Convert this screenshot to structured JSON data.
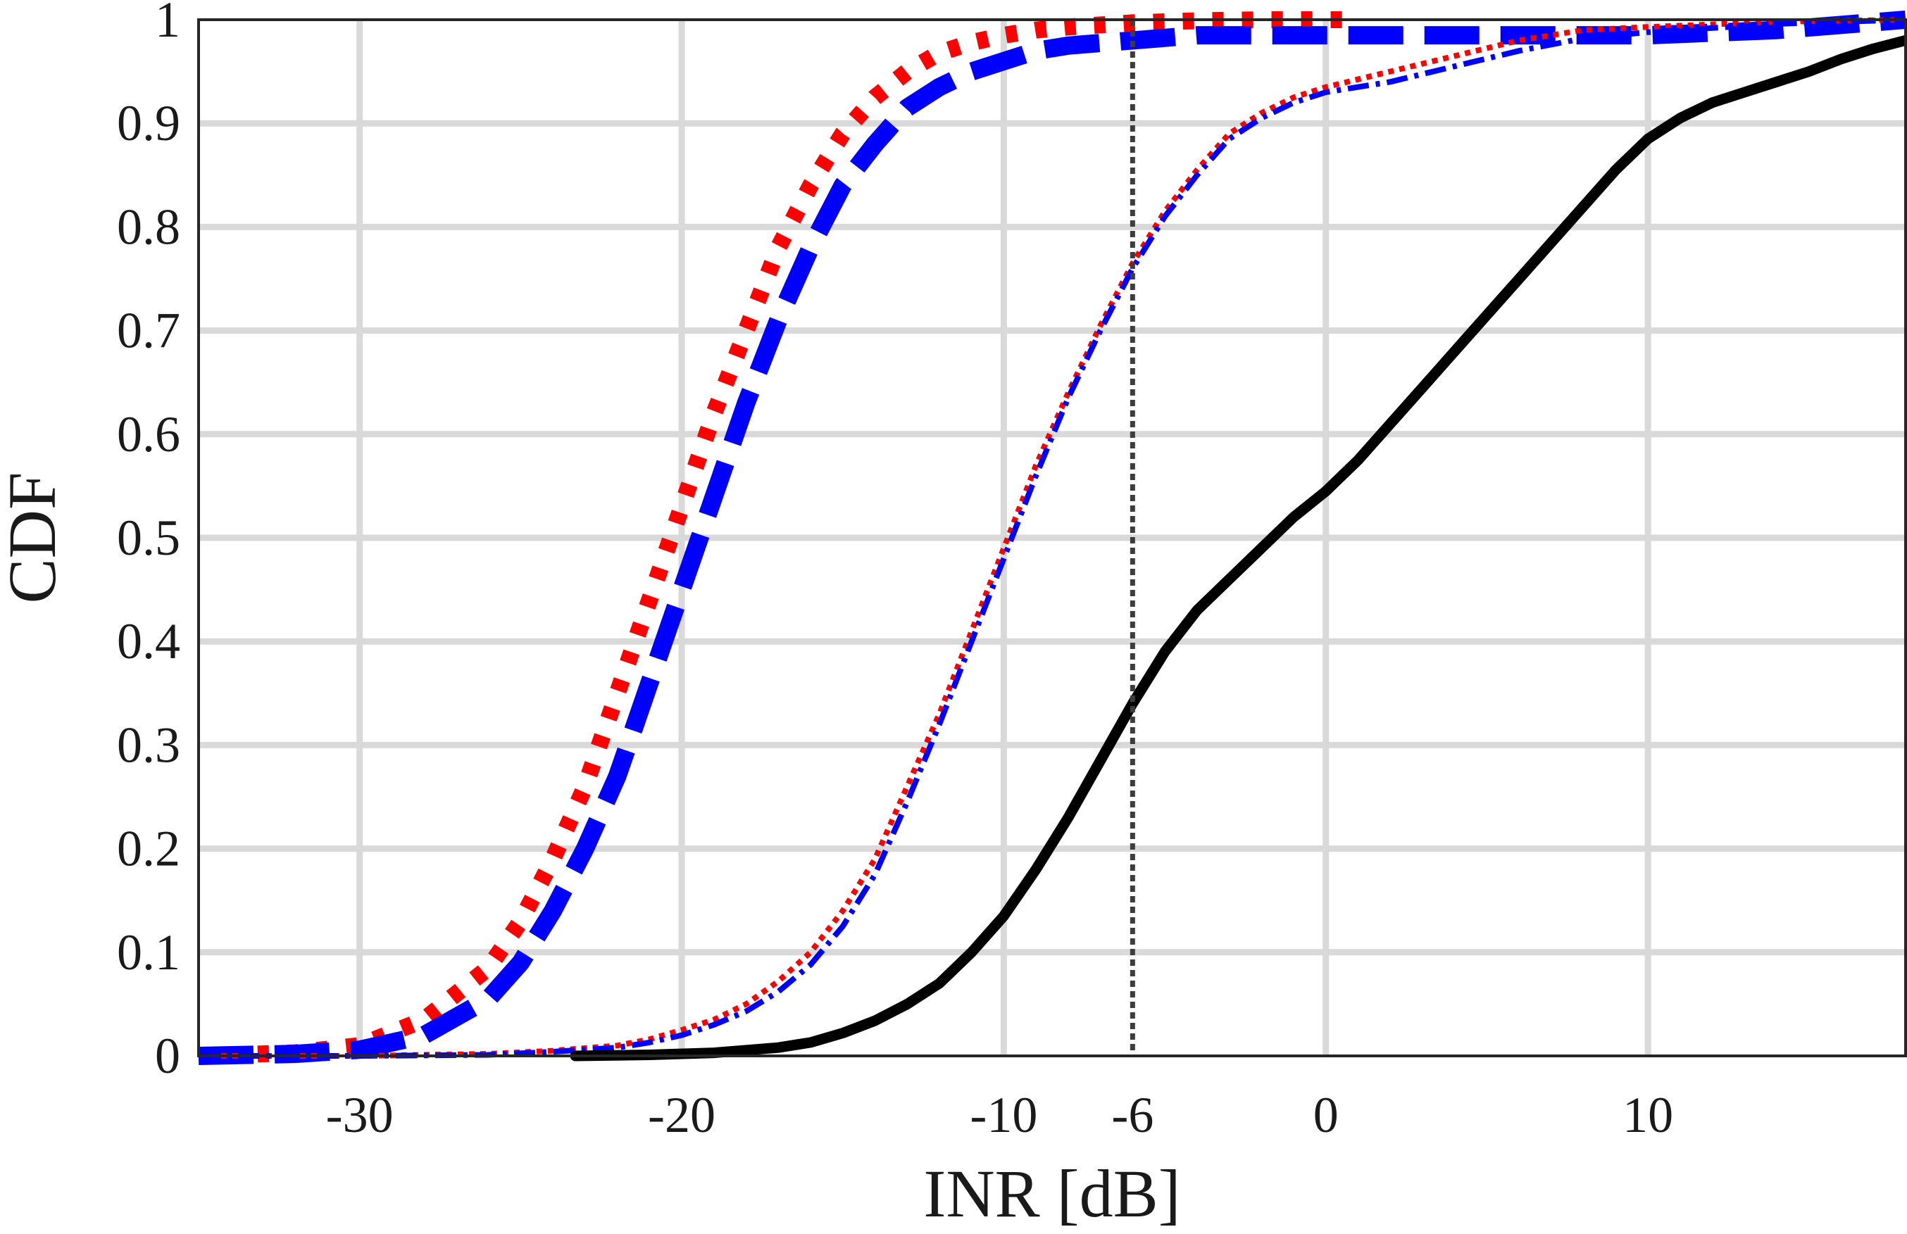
{
  "chart_data": {
    "type": "line",
    "title": "",
    "xlabel": "INR [dB]",
    "ylabel": "CDF",
    "xlim": [
      -35,
      18
    ],
    "ylim": [
      0,
      1
    ],
    "xticks": [
      -30,
      -20,
      -10,
      -6,
      0,
      10
    ],
    "xtick_labels": [
      "-30",
      "-20",
      "-10",
      "-6",
      "0",
      "10"
    ],
    "yticks": [
      0,
      0.1,
      0.2,
      0.3,
      0.4,
      0.5,
      0.6,
      0.7,
      0.8,
      0.9,
      1
    ],
    "ytick_labels": [
      "0",
      "0.1",
      "0.2",
      "0.3",
      "0.4",
      "0.5",
      "0.6",
      "0.7",
      "0.8",
      "0.9",
      "1"
    ],
    "grid": true,
    "vline": {
      "x": -6,
      "color": "#3d3d3d",
      "style": "dotted"
    },
    "series": [
      {
        "color": "#ff0000",
        "style": "dotted-thick",
        "x": [
          -35,
          -32,
          -30,
          -28,
          -26,
          -25,
          -24,
          -23,
          -22,
          -21,
          -20,
          -19,
          -18,
          -17,
          -16,
          -15,
          -14,
          -13,
          -12,
          -11,
          -10,
          -9,
          -8,
          -7,
          -6,
          -4,
          -2,
          0,
          1
        ],
        "y": [
          0,
          0.003,
          0.01,
          0.035,
          0.085,
          0.13,
          0.19,
          0.26,
          0.35,
          0.44,
          0.53,
          0.62,
          0.7,
          0.78,
          0.84,
          0.89,
          0.925,
          0.95,
          0.968,
          0.978,
          0.985,
          0.99,
          0.993,
          0.995,
          0.997,
          0.999,
          1,
          1,
          1
        ]
      },
      {
        "color": "#0000ff",
        "style": "dashed-thick",
        "x": [
          -35,
          -32,
          -30,
          -28,
          -26,
          -25,
          -24,
          -23,
          -22,
          -21,
          -20,
          -19,
          -18,
          -17,
          -16,
          -15,
          -14,
          -13,
          -12,
          -11,
          -10,
          -9,
          -8,
          -6,
          -4,
          -2,
          0,
          5,
          10,
          14,
          18
        ],
        "y": [
          0,
          0.002,
          0.006,
          0.02,
          0.055,
          0.09,
          0.14,
          0.2,
          0.27,
          0.36,
          0.45,
          0.54,
          0.63,
          0.71,
          0.78,
          0.84,
          0.88,
          0.915,
          0.935,
          0.95,
          0.96,
          0.97,
          0.975,
          0.98,
          0.985,
          0.985,
          0.985,
          0.985,
          0.985,
          0.99,
          1
        ]
      },
      {
        "color": "#ff0000",
        "style": "dotted-thin",
        "x": [
          -35,
          -30,
          -26,
          -24,
          -22,
          -21,
          -20,
          -19,
          -18,
          -17,
          -16,
          -15,
          -14,
          -13,
          -12,
          -11,
          -10,
          -9,
          -8,
          -7,
          -6,
          -5,
          -4,
          -3,
          -2,
          -1,
          0,
          2,
          4,
          6,
          8,
          10,
          14,
          18
        ],
        "y": [
          0,
          0,
          0.002,
          0.005,
          0.01,
          0.016,
          0.025,
          0.035,
          0.05,
          0.072,
          0.1,
          0.14,
          0.19,
          0.26,
          0.33,
          0.41,
          0.49,
          0.57,
          0.64,
          0.705,
          0.765,
          0.815,
          0.855,
          0.89,
          0.91,
          0.925,
          0.935,
          0.95,
          0.965,
          0.98,
          0.99,
          0.993,
          0.998,
          1
        ]
      },
      {
        "color": "#0000ff",
        "style": "dashdot-thin",
        "x": [
          -35,
          -30,
          -26,
          -24,
          -22,
          -21,
          -20,
          -19,
          -18,
          -17,
          -16,
          -15,
          -14,
          -13,
          -12,
          -11,
          -10,
          -9,
          -8,
          -7,
          -6,
          -5,
          -4,
          -3,
          -2,
          -1,
          0,
          2,
          4,
          6,
          8,
          10,
          14,
          18
        ],
        "y": [
          0,
          0,
          0.001,
          0.004,
          0.008,
          0.013,
          0.02,
          0.03,
          0.043,
          0.062,
          0.088,
          0.125,
          0.175,
          0.245,
          0.32,
          0.4,
          0.48,
          0.56,
          0.635,
          0.7,
          0.76,
          0.81,
          0.85,
          0.885,
          0.905,
          0.92,
          0.93,
          0.94,
          0.955,
          0.97,
          0.982,
          0.988,
          0.996,
          1
        ]
      },
      {
        "color": "#000000",
        "style": "solid-thick",
        "x": [
          -23.3,
          -21,
          -19,
          -17,
          -16,
          -15,
          -14,
          -13,
          -12,
          -11,
          -10,
          -9,
          -8,
          -7,
          -6,
          -5,
          -4,
          -3,
          -2,
          -1,
          0,
          1,
          2,
          3,
          4,
          5,
          6,
          7,
          8,
          9,
          10,
          11,
          12,
          13,
          14,
          15,
          16,
          17,
          18
        ],
        "y": [
          0,
          0.001,
          0.003,
          0.008,
          0.013,
          0.022,
          0.034,
          0.05,
          0.07,
          0.1,
          0.135,
          0.18,
          0.23,
          0.285,
          0.34,
          0.39,
          0.43,
          0.46,
          0.49,
          0.52,
          0.545,
          0.575,
          0.61,
          0.645,
          0.68,
          0.715,
          0.75,
          0.785,
          0.82,
          0.855,
          0.885,
          0.905,
          0.92,
          0.93,
          0.94,
          0.95,
          0.962,
          0.972,
          0.98
        ]
      }
    ]
  }
}
